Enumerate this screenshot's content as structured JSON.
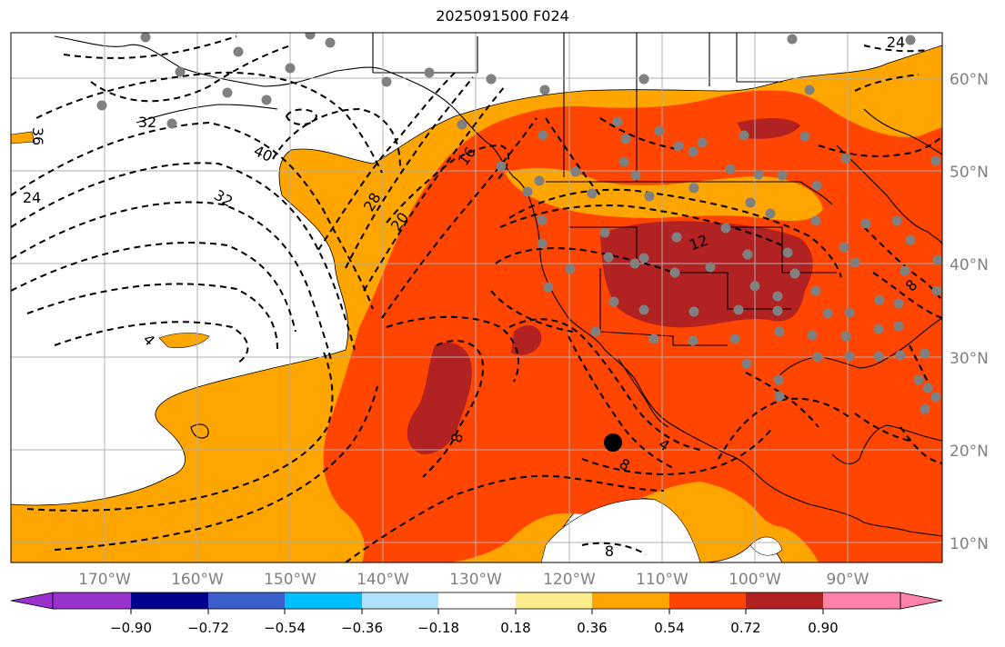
{
  "title": "2025091500 F024",
  "lon_labels": [
    "170°W",
    "160°W",
    "150°W",
    "140°W",
    "130°W",
    "120°W",
    "110°W",
    "100°W",
    "90°W"
  ],
  "lat_labels": [
    "60°N",
    "50°N",
    "40°N",
    "30°N",
    "20°N",
    "10°N"
  ],
  "colorbar": {
    "ticks": [
      "−0.90",
      "−0.72",
      "−0.54",
      "−0.36",
      "−0.18",
      "0.18",
      "0.36",
      "0.54",
      "0.72",
      "0.90"
    ],
    "colors": [
      "#9932cc",
      "#00008b",
      "#3a5fcd",
      "#00bfff",
      "#b0e2ff",
      "#ffffff",
      "#ffec8b",
      "#ffa500",
      "#ff4500",
      "#b22222",
      "#ff82ab"
    ]
  },
  "contour_labels": [
    "36",
    "32",
    "24",
    "40",
    "32",
    "28",
    "20",
    "16",
    "12",
    "8",
    "4",
    "8",
    "4",
    "8",
    "8",
    "24"
  ],
  "colors": {
    "orange": "#ffa500",
    "orange_red": "#ff4500",
    "firebrick": "#b22222",
    "station": "#808080",
    "grid": "#b0b0b0"
  }
}
